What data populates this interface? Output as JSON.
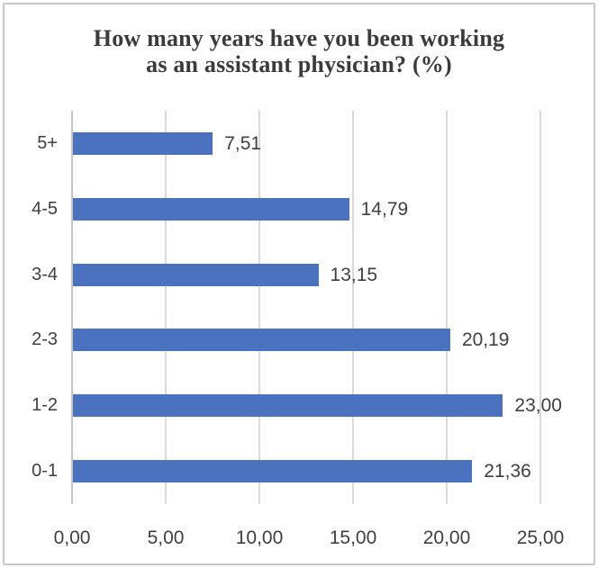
{
  "chart_data": {
    "type": "bar",
    "orientation": "horizontal",
    "title": "How many years have you been working as an assistant physician? (%)",
    "title_lines": [
      "How many years have you been working",
      "as an assistant physician? (%)"
    ],
    "categories": [
      "5+",
      "4-5",
      "3-4",
      "2-3",
      "1-2",
      "0-1"
    ],
    "values": [
      7.51,
      14.79,
      13.15,
      20.19,
      23.0,
      21.36
    ],
    "data_labels": [
      "7,51",
      "14,79",
      "13,15",
      "20,19",
      "23,00",
      "21,36"
    ],
    "x_ticks": [
      {
        "value": 0,
        "label": "0,00"
      },
      {
        "value": 5,
        "label": "5,00"
      },
      {
        "value": 10,
        "label": "10,00"
      },
      {
        "value": 15,
        "label": "15,00"
      },
      {
        "value": 20,
        "label": "20,00"
      },
      {
        "value": 25,
        "label": "25,00"
      }
    ],
    "xlim": [
      0,
      25
    ],
    "grid": true,
    "legend": false,
    "xlabel": "",
    "ylabel": "",
    "colors": {
      "bar": "#4a72bf",
      "grid": "#d9d9d9",
      "zero_axis": "#c3c3c3",
      "text": "#3f3f3f",
      "title": "#3b3b3b",
      "frame_border": "#c5c9cc",
      "background": "#ffffff"
    }
  }
}
